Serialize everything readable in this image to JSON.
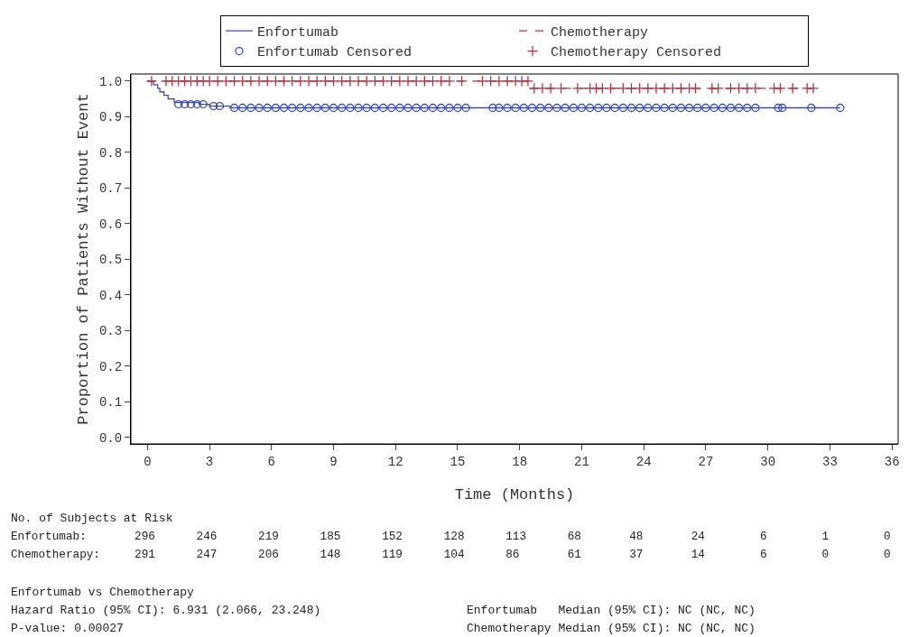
{
  "chart_data": {
    "type": "step",
    "xlabel": "Time (Months)",
    "ylabel": "Proportion of Patients Without Event",
    "xlim": [
      -0.8,
      36.3
    ],
    "xticks": [
      0,
      3,
      6,
      9,
      12,
      15,
      18,
      21,
      24,
      27,
      30,
      33,
      36
    ],
    "ylim": [
      -0.018,
      1.02
    ],
    "yticks": [
      {
        "value": 0,
        "label": "0.0"
      },
      {
        "value": 0.1,
        "label": "0.1"
      },
      {
        "value": 0.2,
        "label": "0.2"
      },
      {
        "value": 0.3,
        "label": "0.3"
      },
      {
        "value": 0.4,
        "label": "0.4"
      },
      {
        "value": 0.5,
        "label": "0.5"
      },
      {
        "value": 0.6,
        "label": "0.6"
      },
      {
        "value": 0.7,
        "label": "0.7"
      },
      {
        "value": 0.8,
        "label": "0.8"
      },
      {
        "value": 0.9,
        "label": "0.9"
      },
      {
        "value": 1,
        "label": "1.0"
      }
    ],
    "legend": "top",
    "series": [
      {
        "name": "Enfortumab",
        "color": "#3848cc",
        "line_style": "solid",
        "marker": "none",
        "x": [
          0,
          0.3,
          0.5,
          0.6,
          0.8,
          1.0,
          1.3,
          2.5,
          3.0,
          4.0,
          33.5
        ],
        "values": [
          1,
          0.99,
          0.98,
          0.97,
          0.96,
          0.95,
          0.94,
          0.935,
          0.93,
          0.925,
          0.925
        ]
      },
      {
        "name": "Chemotherapy",
        "color": "#c0303c",
        "line_style": "dashed",
        "marker": "none",
        "x": [
          0,
          18.5,
          32.2
        ],
        "values": [
          1,
          0.98,
          0.98
        ]
      },
      {
        "name": "Enfortumab Censored",
        "type": "scatter",
        "color": "#3848cc",
        "marker": "circle",
        "x": [
          1.5,
          1.8,
          2.1,
          2.4,
          2.7,
          3.2,
          3.5,
          4.2,
          4.6,
          5.0,
          5.4,
          5.8,
          6.2,
          6.6,
          7.0,
          7.4,
          7.8,
          8.2,
          8.6,
          9.0,
          9.4,
          9.8,
          10.2,
          10.6,
          11.0,
          11.4,
          11.8,
          12.2,
          12.6,
          13.0,
          13.4,
          13.8,
          14.2,
          14.6,
          15.0,
          15.4,
          16.7,
          17.0,
          17.4,
          17.8,
          18.2,
          18.6,
          19.0,
          19.4,
          19.8,
          20.2,
          20.6,
          21.0,
          21.4,
          21.8,
          22.2,
          22.6,
          23.0,
          23.4,
          23.8,
          24.2,
          24.6,
          25.0,
          25.4,
          25.8,
          26.2,
          26.6,
          27.0,
          27.4,
          27.8,
          28.2,
          28.6,
          29.0,
          29.4,
          30.5,
          30.7,
          32.1,
          33.5
        ],
        "values": [
          0.935,
          0.935,
          0.935,
          0.935,
          0.935,
          0.93,
          0.93,
          0.925,
          0.925,
          0.925,
          0.925,
          0.925,
          0.925,
          0.925,
          0.925,
          0.925,
          0.925,
          0.925,
          0.925,
          0.925,
          0.925,
          0.925,
          0.925,
          0.925,
          0.925,
          0.925,
          0.925,
          0.925,
          0.925,
          0.925,
          0.925,
          0.925,
          0.925,
          0.925,
          0.925,
          0.925,
          0.925,
          0.925,
          0.925,
          0.925,
          0.925,
          0.925,
          0.925,
          0.925,
          0.925,
          0.925,
          0.925,
          0.925,
          0.925,
          0.925,
          0.925,
          0.925,
          0.925,
          0.925,
          0.925,
          0.925,
          0.925,
          0.925,
          0.925,
          0.925,
          0.925,
          0.925,
          0.925,
          0.925,
          0.925,
          0.925,
          0.925,
          0.925,
          0.925,
          0.925,
          0.925,
          0.925,
          0.925
        ]
      },
      {
        "name": "Chemotherapy Censored",
        "type": "scatter",
        "color": "#c0303c",
        "marker": "cross",
        "x": [
          0.2,
          0.9,
          1.2,
          1.5,
          1.8,
          2.1,
          2.4,
          2.7,
          3.0,
          3.4,
          3.8,
          4.2,
          4.6,
          5.0,
          5.4,
          5.8,
          6.2,
          6.6,
          7.0,
          7.4,
          7.8,
          8.2,
          8.6,
          9.0,
          9.4,
          9.8,
          10.2,
          10.6,
          11.0,
          11.4,
          11.8,
          12.2,
          12.6,
          13.0,
          13.4,
          13.8,
          14.2,
          14.6,
          15.2,
          16.2,
          16.6,
          17.0,
          17.4,
          17.8,
          18.1,
          18.4,
          18.7,
          19.1,
          19.5,
          20.0,
          20.8,
          21.4,
          21.7,
          22.0,
          22.4,
          23.0,
          23.4,
          23.8,
          24.2,
          24.6,
          25.0,
          25.4,
          25.8,
          26.2,
          26.5,
          27.3,
          27.6,
          28.2,
          28.6,
          29.0,
          29.4,
          30.3,
          30.6,
          31.2,
          31.9,
          32.2
        ],
        "values": [
          1,
          1,
          1,
          1,
          1,
          1,
          1,
          1,
          1,
          1,
          1,
          1,
          1,
          1,
          1,
          1,
          1,
          1,
          1,
          1,
          1,
          1,
          1,
          1,
          1,
          1,
          1,
          1,
          1,
          1,
          1,
          1,
          1,
          1,
          1,
          1,
          1,
          1,
          1,
          1,
          1,
          1,
          1,
          1,
          1,
          1,
          0.98,
          0.98,
          0.98,
          0.98,
          0.98,
          0.98,
          0.98,
          0.98,
          0.98,
          0.98,
          0.98,
          0.98,
          0.98,
          0.98,
          0.98,
          0.98,
          0.98,
          0.98,
          0.98,
          0.98,
          0.98,
          0.98,
          0.98,
          0.98,
          0.98,
          0.98,
          0.98,
          0.98,
          0.98,
          0.98
        ]
      }
    ],
    "annotations": [
      "No. of Subjects at Risk",
      "Enfortumab:       296      246      219      185      152      128      113      68       48       24        6        1        0",
      "Chemotherapy:     291      247      206      148      119      104      86       61       37       14        6        0        0",
      "Enfortumab vs Chemotherapy",
      "Hazard Ratio (95% CI): 6.931 (2.066, 23.248)",
      "P-value: 0.00027",
      "Enfortumab   Median (95% CI): NC (NC, NC)",
      "Chemotherapy Median (95% CI): NC (NC, NC)"
    ]
  }
}
